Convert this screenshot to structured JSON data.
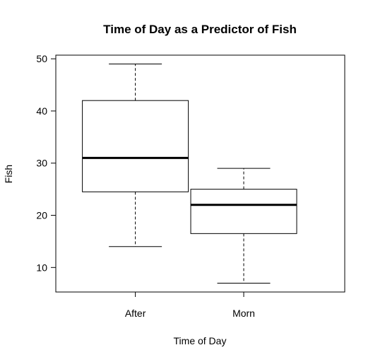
{
  "chart_data": {
    "type": "box",
    "title": "Time of Day as a Predictor of Fish",
    "xlabel": "Time of Day",
    "ylabel": "Fish",
    "ylim": [
      5.3,
      50.7
    ],
    "yticks": [
      10,
      20,
      30,
      40,
      50
    ],
    "categories": [
      "After",
      "Morn"
    ],
    "boxes": [
      {
        "name": "After",
        "min": 14,
        "q1": 24.5,
        "median": 31,
        "q3": 42,
        "max": 49
      },
      {
        "name": "Morn",
        "min": 7,
        "q1": 16.5,
        "median": 22,
        "q3": 25,
        "max": 29
      }
    ],
    "grid": false,
    "legend": "none"
  }
}
